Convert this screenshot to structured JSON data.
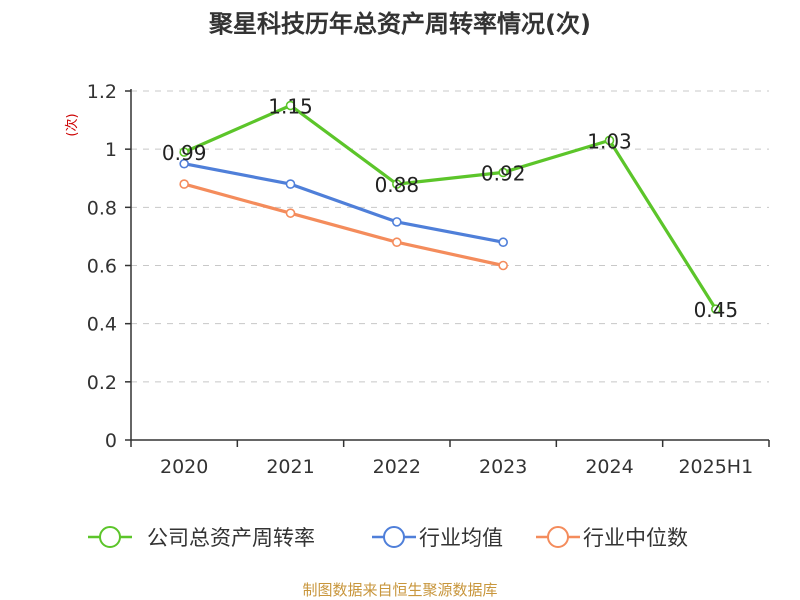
{
  "chart_data": {
    "type": "line",
    "title": "聚星科技历年总资产周转率情况(次)",
    "ylabel": "(次)",
    "categories": [
      "2020",
      "2021",
      "2022",
      "2023",
      "2024",
      "2025H1"
    ],
    "ylim": [
      0,
      1.2
    ],
    "yticks": [
      "0",
      "0.2",
      "0.4",
      "0.6",
      "0.8",
      "1",
      "1.2"
    ],
    "grid": true,
    "legend_position": "bottom",
    "series": [
      {
        "name": "公司总资产周转率",
        "color": "#5cc52a",
        "values": [
          0.99,
          1.15,
          0.88,
          0.92,
          1.03,
          0.45
        ],
        "labels": [
          "0.99",
          "1.15",
          "0.88",
          "0.92",
          "1.03",
          "0.45"
        ]
      },
      {
        "name": "行业均值",
        "color": "#4f7fd9",
        "values": [
          0.95,
          0.88,
          0.75,
          0.68,
          null,
          null
        ]
      },
      {
        "name": "行业中位数",
        "color": "#f48c5c",
        "values": [
          0.88,
          0.78,
          0.68,
          0.6,
          null,
          null
        ]
      }
    ],
    "source": "制图数据来自恒生聚源数据库"
  }
}
